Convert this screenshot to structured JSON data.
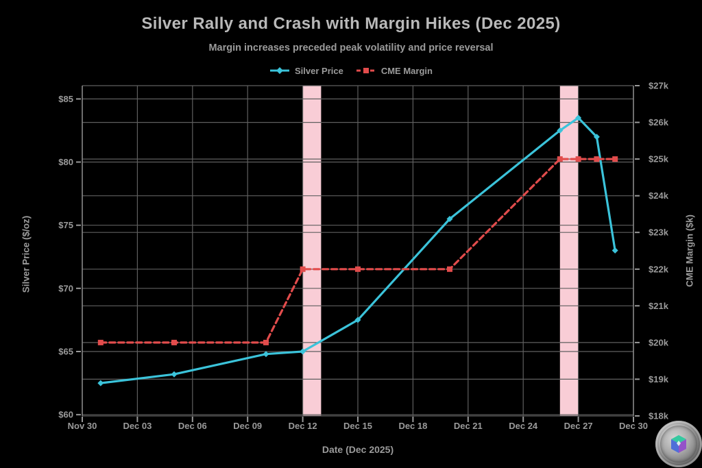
{
  "title": "Silver Rally and Crash with Margin Hikes (Dec 2025)",
  "subtitle": "Margin increases preceded peak volatility and price reversal",
  "watermark": {
    "description": "silver coin logo with teal-blue-purple emblem"
  },
  "chart_data": {
    "type": "line",
    "title": "Silver Rally and Crash with Margin Hikes (Dec 2025)",
    "subtitle": "Margin increases preceded peak volatility and price reversal",
    "xlabel": "Date (Dec 2025)",
    "ylabel_left": "Silver Price ($/oz)",
    "ylabel_right": "CME Margin ($k)",
    "legend_position": "top-center",
    "grid": true,
    "background_color": "#000000",
    "grid_color": "#5f5f5f",
    "spine_color": "#8c8c8c",
    "tick_color": "#9a9a9a",
    "text_color": "#9b9b9b",
    "band_color": "#f9cdd6",
    "xlim_days": [
      0,
      30
    ],
    "ylim_left": [
      59.9,
      86.05
    ],
    "ylim_right": [
      18,
      27
    ],
    "x_ticks": [
      {
        "day": 0,
        "label": "Nov 30"
      },
      {
        "day": 3,
        "label": "Dec 03"
      },
      {
        "day": 6,
        "label": "Dec 06"
      },
      {
        "day": 9,
        "label": "Dec 09"
      },
      {
        "day": 12,
        "label": "Dec 12"
      },
      {
        "day": 15,
        "label": "Dec 15"
      },
      {
        "day": 18,
        "label": "Dec 18"
      },
      {
        "day": 21,
        "label": "Dec 21"
      },
      {
        "day": 24,
        "label": "Dec 24"
      },
      {
        "day": 27,
        "label": "Dec 27"
      },
      {
        "day": 30,
        "label": "Dec 30"
      }
    ],
    "y_left_ticks": [
      {
        "value": 60,
        "label": "$60"
      },
      {
        "value": 65,
        "label": "$65"
      },
      {
        "value": 70,
        "label": "$70"
      },
      {
        "value": 75,
        "label": "$75"
      },
      {
        "value": 80,
        "label": "$80"
      },
      {
        "value": 85,
        "label": "$85"
      }
    ],
    "y_right_ticks": [
      {
        "value": 18,
        "label": "$18k"
      },
      {
        "value": 19,
        "label": "$19k"
      },
      {
        "value": 20,
        "label": "$20k"
      },
      {
        "value": 21,
        "label": "$21k"
      },
      {
        "value": 22,
        "label": "$22k"
      },
      {
        "value": 23,
        "label": "$23k"
      },
      {
        "value": 24,
        "label": "$24k"
      },
      {
        "value": 25,
        "label": "$25k"
      },
      {
        "value": 26,
        "label": "$26k"
      },
      {
        "value": 27,
        "label": "$27k"
      }
    ],
    "dates": [
      "Dec 01",
      "Dec 05",
      "Dec 10",
      "Dec 12",
      "Dec 15",
      "Dec 20",
      "Dec 26",
      "Dec 27",
      "Dec 28",
      "Dec 29"
    ],
    "x_days": [
      1,
      5,
      10,
      12,
      15,
      20,
      26,
      27,
      28,
      29
    ],
    "series": [
      {
        "name": "Silver Price",
        "axis": "left",
        "color": "#3bc3da",
        "line_style": "solid",
        "marker": "diamond",
        "values": [
          62.5,
          63.2,
          64.8,
          65.0,
          67.5,
          75.5,
          82.5,
          83.5,
          82.0,
          73.0
        ]
      },
      {
        "name": "CME Margin",
        "axis": "right",
        "color": "#e24c4c",
        "line_style": "dashed",
        "marker": "square",
        "values": [
          20,
          20,
          20,
          22,
          22,
          22,
          25,
          25,
          25,
          25
        ]
      }
    ],
    "highlight_bands": [
      {
        "from_day": 12,
        "to_day": 13,
        "meaning": "margin hike window"
      },
      {
        "from_day": 26,
        "to_day": 27,
        "meaning": "margin hike window"
      }
    ]
  }
}
